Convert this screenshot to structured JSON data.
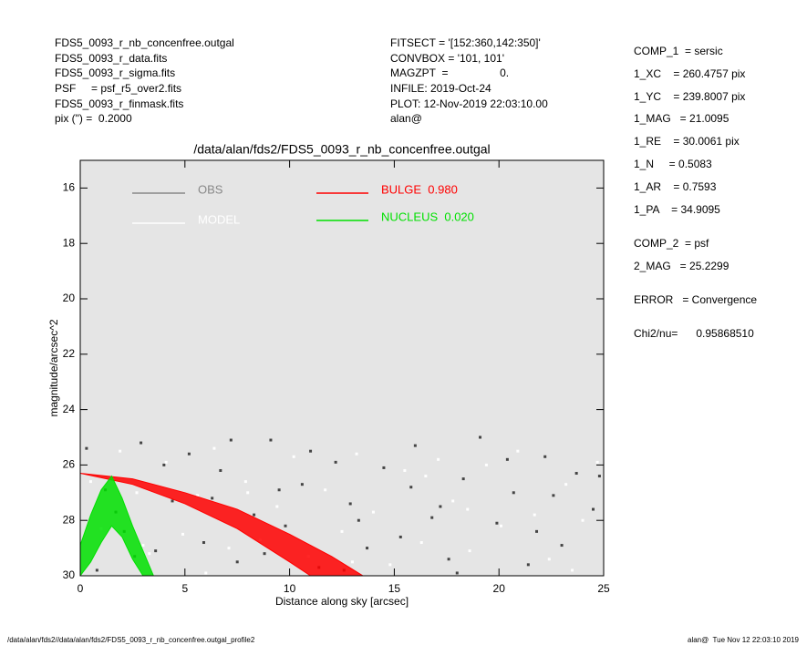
{
  "header": {
    "left": [
      "FDS5_0093_r_nb_concenfree.outgal",
      "FDS5_0093_r_data.fits",
      "FDS5_0093_r_sigma.fits",
      "PSF     = psf_r5_over2.fits",
      "FDS5_0093_r_finmask.fits",
      "pix (\") =  0.2000"
    ],
    "middle": [
      "FITSECT = '[152:360,142:350]'",
      "CONVBOX = '101, 101'",
      "MAGZPT  =                 0.",
      "INFILE: 2019-Oct-24",
      "PLOT: 12-Nov-2019 22:03:10.00",
      "alan@"
    ],
    "right": [
      "COMP_1  = sersic",
      "1_XC    = 260.4757 pix",
      "1_YC    = 239.8007 pix",
      "1_MAG   = 21.0095",
      "1_RE    = 30.0061 pix",
      "1_N     = 0.5083",
      "1_AR    = 0.7593",
      "1_PA    = 34.9095",
      "COMP_2  = psf",
      "2_MAG   = 25.2299",
      "ERROR   = Convergence",
      "Chi2/nu=      0.95868510"
    ]
  },
  "footer": {
    "left": "/data/alan/fds2//data/alan/fds2/FDS5_0093_r_nb_concenfree.outgal_profile2",
    "right": "alan@  Tue Nov 12 22:03:10 2019"
  },
  "chart_data": {
    "type": "scatter",
    "title": "/data/alan/fds2/FDS5_0093_r_nb_concenfree.outgal",
    "xlabel": "Distance along sky [arcsec]",
    "ylabel": "magnitude/arcsec^2",
    "xlim": [
      0,
      25
    ],
    "ylim": [
      30,
      15
    ],
    "xticks": [
      0,
      5,
      10,
      15,
      20,
      25
    ],
    "yticks": [
      16,
      18,
      20,
      22,
      24,
      26,
      28,
      30
    ],
    "series": [
      {
        "name": "OBS",
        "color": "#444444",
        "legend_color": "#888888",
        "x": [
          0.3,
          0.8,
          1.2,
          2.1,
          2.9,
          3.6,
          4.4,
          5.2,
          5.9,
          6.7,
          7.5,
          8.3,
          9.1,
          9.8,
          10.6,
          11.4,
          12.2,
          12.9,
          13.7,
          14.5,
          15.3,
          16.0,
          16.8,
          17.6,
          18.3,
          19.1,
          19.9,
          20.7,
          21.4,
          22.2,
          23.0,
          23.7,
          24.5,
          1.7,
          4.0,
          6.3,
          8.8,
          11.0,
          13.3,
          15.8,
          18.0,
          20.4,
          22.6,
          24.8,
          2.6,
          7.2,
          12.6,
          17.2,
          21.8,
          9.5
        ],
        "values": [
          25.4,
          29.8,
          26.9,
          28.4,
          25.2,
          29.1,
          27.3,
          25.6,
          28.8,
          26.2,
          29.5,
          27.8,
          25.1,
          28.2,
          26.7,
          29.7,
          25.9,
          27.4,
          29.0,
          26.1,
          28.6,
          25.3,
          27.9,
          29.4,
          26.5,
          25.0,
          28.1,
          27.0,
          29.6,
          25.7,
          28.9,
          26.3,
          27.6,
          27.7,
          26.0,
          27.2,
          29.2,
          25.5,
          28.0,
          26.8,
          29.9,
          25.8,
          27.1,
          26.4,
          29.3,
          25.1,
          29.8,
          27.5,
          28.4,
          26.9
        ]
      },
      {
        "name": "MODEL",
        "color": "#ffffff",
        "legend_color": "#ffffff",
        "x": [
          0.5,
          1.0,
          1.9,
          2.7,
          3.3,
          4.1,
          4.9,
          5.6,
          6.4,
          7.1,
          7.9,
          8.6,
          9.4,
          10.2,
          10.9,
          11.7,
          12.5,
          13.2,
          14.0,
          14.8,
          15.5,
          16.3,
          17.1,
          17.8,
          18.6,
          19.4,
          20.1,
          20.9,
          21.7,
          22.4,
          23.2,
          24.0,
          24.7,
          3.0,
          8.0,
          13.0,
          18.5,
          23.5,
          6.0,
          16.5
        ],
        "values": [
          26.6,
          28.3,
          25.5,
          27.0,
          29.2,
          25.9,
          28.5,
          27.1,
          25.4,
          29.0,
          26.6,
          28.7,
          27.5,
          25.7,
          29.3,
          26.9,
          28.4,
          25.6,
          27.7,
          29.6,
          26.2,
          28.8,
          25.8,
          27.3,
          29.1,
          26.0,
          28.2,
          25.5,
          27.8,
          29.4,
          26.7,
          28.0,
          25.9,
          28.9,
          27.0,
          29.5,
          27.6,
          29.8,
          29.9,
          26.4
        ]
      }
    ],
    "bands": [
      {
        "name": "BULGE  0.980",
        "color": "#ff0000",
        "x": [
          0,
          2.5,
          5,
          7.5,
          10,
          11,
          12,
          13.5
        ],
        "bright": [
          26.3,
          26.5,
          27.0,
          27.6,
          28.5,
          28.9,
          29.3,
          30
        ],
        "faint": [
          26.3,
          26.7,
          27.4,
          28.3,
          29.5,
          30,
          null,
          null
        ]
      },
      {
        "name": "NUCLEUS  0.020",
        "color": "#00e000",
        "x": [
          0,
          0.5,
          1,
          1.5,
          2,
          2.5,
          3,
          3.5
        ],
        "bright": [
          28.9,
          27.8,
          26.9,
          26.4,
          27.2,
          28.2,
          29.1,
          30
        ],
        "faint": [
          30,
          29.5,
          28.8,
          28.2,
          28.6,
          29.4,
          30,
          null
        ]
      }
    ]
  }
}
